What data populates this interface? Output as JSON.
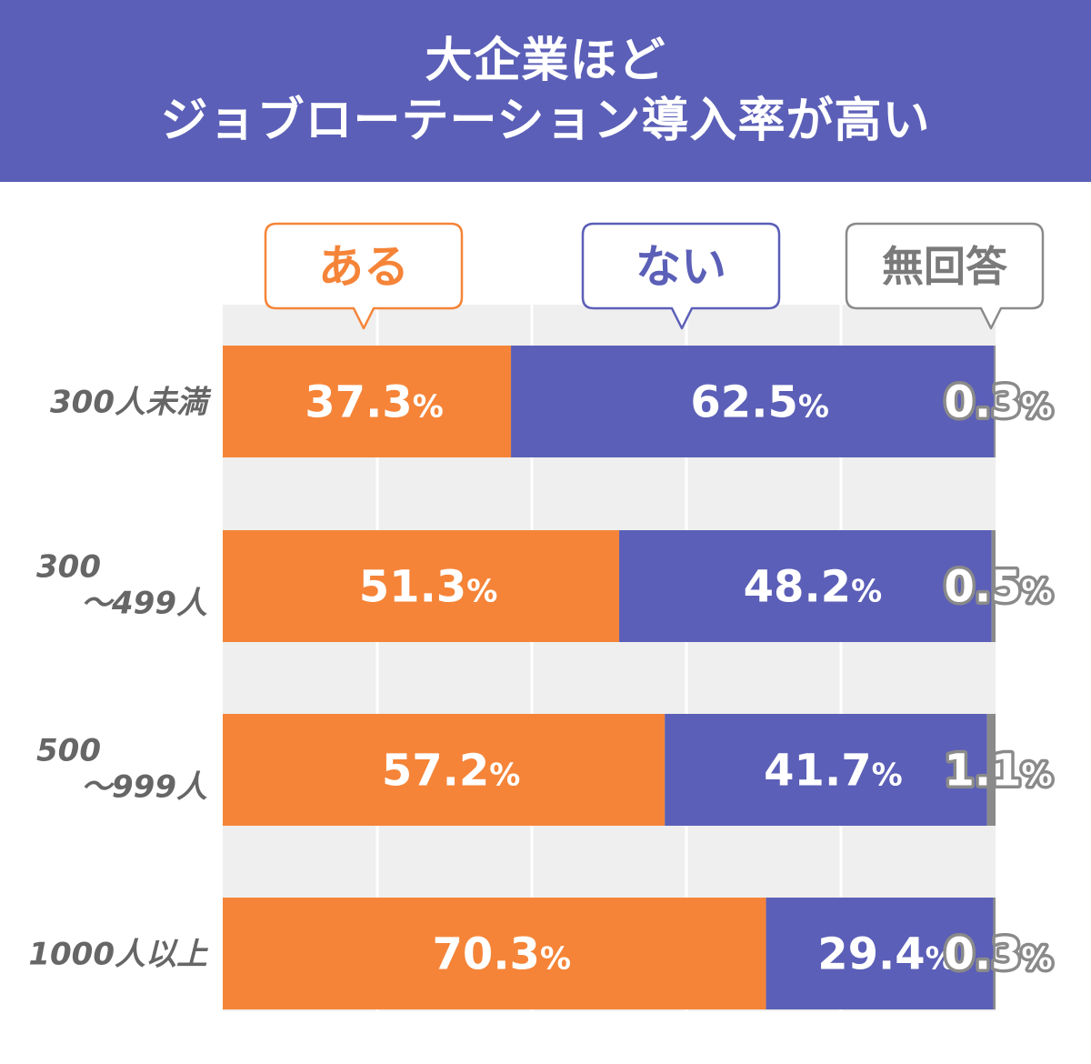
{
  "title": {
    "line1": "大企業ほど",
    "line2": "ジョブローテーション導入率が高い"
  },
  "colors": {
    "header_bg": "#5b5fb7",
    "aru": "#f58438",
    "nai": "#5b5fb7",
    "mukaitou": "#8a8a8a",
    "plot_bg": "#efefef"
  },
  "chart_data": {
    "type": "bar",
    "orientation": "horizontal",
    "stacked": true,
    "xlim": [
      0,
      100
    ],
    "grid": true,
    "legend_placement": "top",
    "categories": [
      [
        "300人未満"
      ],
      [
        "300",
        "～499人"
      ],
      [
        "500",
        "～999人"
      ],
      [
        "1000人以上"
      ]
    ],
    "series": [
      {
        "name": "ある",
        "color": "#f58438",
        "values": [
          37.3,
          51.3,
          57.2,
          70.3
        ],
        "labels": [
          "37.3",
          "51.3",
          "57.2",
          "70.3"
        ]
      },
      {
        "name": "ない",
        "color": "#5b5fb7",
        "values": [
          62.5,
          48.2,
          41.7,
          29.4
        ],
        "labels": [
          "62.5",
          "48.2",
          "41.7",
          "29.4"
        ]
      },
      {
        "name": "無回答",
        "color": "#8a8a8a",
        "values": [
          0.3,
          0.5,
          1.1,
          0.3
        ],
        "labels": [
          "0.3",
          "0.5",
          "1.1",
          "0.3"
        ]
      }
    ],
    "unit": "%"
  }
}
